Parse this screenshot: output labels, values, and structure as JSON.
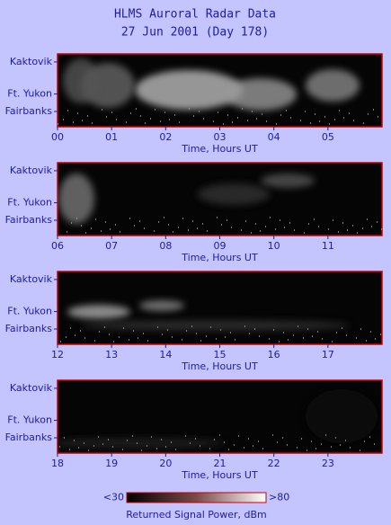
{
  "title": "HLMS Auroral Radar Data",
  "subtitle": "27 Jun 2001 (Day 178)",
  "chart_data": [
    {
      "type": "heatmap",
      "y_categories": [
        "Kaktovik",
        "Ft. Yukon",
        "Fairbanks"
      ],
      "xlabel": "Time, Hours UT",
      "xlim": [
        0,
        6
      ],
      "xticks": [
        {
          "value": 0,
          "label": "00"
        },
        {
          "value": 1,
          "label": "01"
        },
        {
          "value": 2,
          "label": "02"
        },
        {
          "value": 3,
          "label": "03"
        },
        {
          "value": 4,
          "label": "04"
        },
        {
          "value": 5,
          "label": "05"
        }
      ]
    },
    {
      "type": "heatmap",
      "y_categories": [
        "Kaktovik",
        "Ft. Yukon",
        "Fairbanks"
      ],
      "xlabel": "Time, Hours UT",
      "xlim": [
        6,
        12
      ],
      "xticks": [
        {
          "value": 6,
          "label": "06"
        },
        {
          "value": 7,
          "label": "07"
        },
        {
          "value": 8,
          "label": "08"
        },
        {
          "value": 9,
          "label": "09"
        },
        10,
        11
      ]
    },
    {
      "type": "heatmap",
      "y_categories": [
        "Kaktovik",
        "Ft. Yukon",
        "Fairbanks"
      ],
      "xlabel": "Time, Hours UT",
      "xlim": [
        12,
        18
      ],
      "xticks": [
        12,
        13,
        14,
        15,
        16,
        17
      ]
    },
    {
      "type": "heatmap",
      "y_categories": [
        "Kaktovik",
        "Ft. Yukon",
        "Fairbanks"
      ],
      "xlabel": "Time, Hours UT",
      "xlim": [
        18,
        24
      ],
      "xticks": [
        18,
        19,
        20,
        21,
        22,
        23
      ]
    }
  ],
  "colorbar": {
    "label": "Returned Signal Power, dBm",
    "lim": [
      30,
      80
    ],
    "ticks": [
      {
        "value": 30,
        "label": "<30"
      },
      {
        "value": 80,
        "label": ">80"
      }
    ],
    "colors": [
      "#000000",
      "#7a4a4a",
      "#ffffff"
    ],
    "border": "#cc0000"
  }
}
